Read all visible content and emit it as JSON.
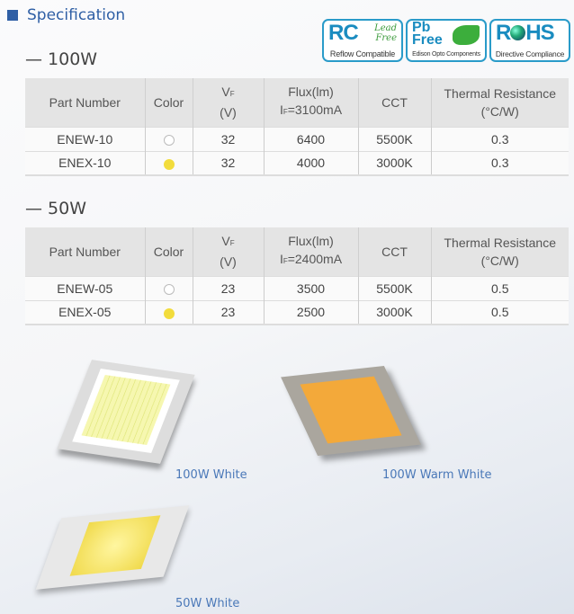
{
  "title": "Specification",
  "badges": [
    {
      "main": "RC",
      "extra": "Lead Free",
      "sub": "Reflow Compatible",
      "icon": "lead-free-script"
    },
    {
      "main": "Pb Free",
      "sub": "Edison Opto Components",
      "icon": "leaf-icon"
    },
    {
      "main_left": "R",
      "main_right": "HS",
      "sub": "Directive Compliance",
      "icon": "globe-icon"
    }
  ],
  "colors": {
    "white_led": "#ffffff",
    "warm_led": "#f2dc3c",
    "accent": "#2f5fa5"
  },
  "headers": {
    "part": "Part Number",
    "color": "Color",
    "vf": "V",
    "vf_sub": "F",
    "vf_unit": "(V)",
    "flux": "Flux(lm)",
    "if": "I",
    "if_sub": "F",
    "cct": "CCT",
    "thermal": "Thermal Resistance",
    "thermal_unit": "(°C/W)"
  },
  "sections": [
    {
      "label": "— 100W",
      "current": "=3100mA",
      "rows": [
        {
          "part": "ENEW-10",
          "color": "white",
          "vf": "32",
          "flux": "6400",
          "cct": "5500K",
          "thermal": "0.3"
        },
        {
          "part": "ENEX-10",
          "color": "warm",
          "vf": "32",
          "flux": "4000",
          "cct": "3000K",
          "thermal": "0.3"
        }
      ]
    },
    {
      "label": "— 50W",
      "current": "=2400mA",
      "rows": [
        {
          "part": "ENEW-05",
          "color": "white",
          "vf": "23",
          "flux": "3500",
          "cct": "5500K",
          "thermal": "0.5"
        },
        {
          "part": "ENEX-05",
          "color": "warm",
          "vf": "23",
          "flux": "2500",
          "cct": "3000K",
          "thermal": "0.5"
        }
      ]
    }
  ],
  "captions": [
    "100W White",
    "100W Warm White",
    "50W White"
  ]
}
